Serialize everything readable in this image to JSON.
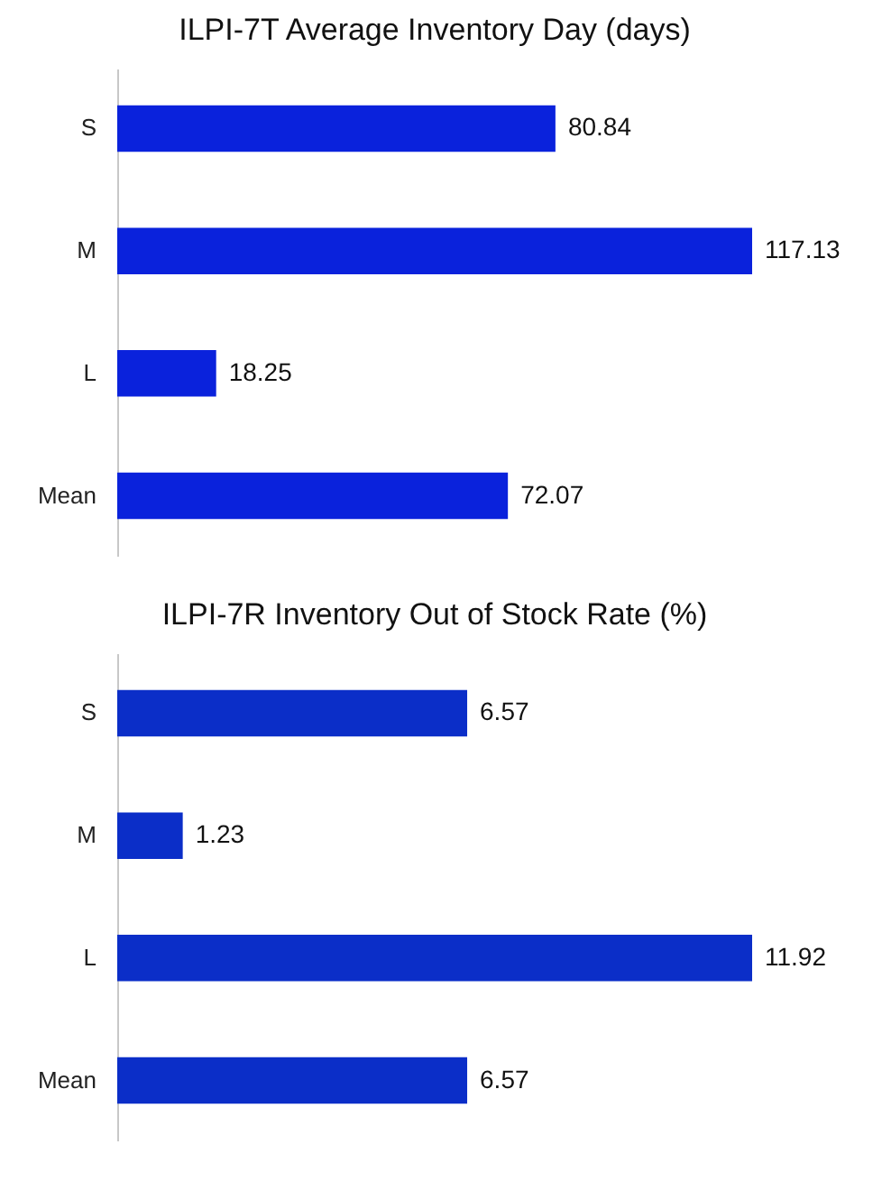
{
  "chart_data": [
    {
      "type": "bar",
      "orientation": "horizontal",
      "title": "ILPI-7T Average Inventory Day  (days)",
      "categories": [
        "S",
        "M",
        "L",
        "Mean"
      ],
      "values": [
        80.84,
        117.13,
        18.25,
        72.07
      ],
      "color": "#0a22dc",
      "data_labels": true
    },
    {
      "type": "bar",
      "orientation": "horizontal",
      "title": "ILPI-7R Inventory Out of Stock Rate (%)",
      "categories": [
        "S",
        "M",
        "L",
        "Mean"
      ],
      "values": [
        6.57,
        1.23,
        11.92,
        6.57
      ],
      "color": "#0b2ec8",
      "data_labels": true
    }
  ]
}
